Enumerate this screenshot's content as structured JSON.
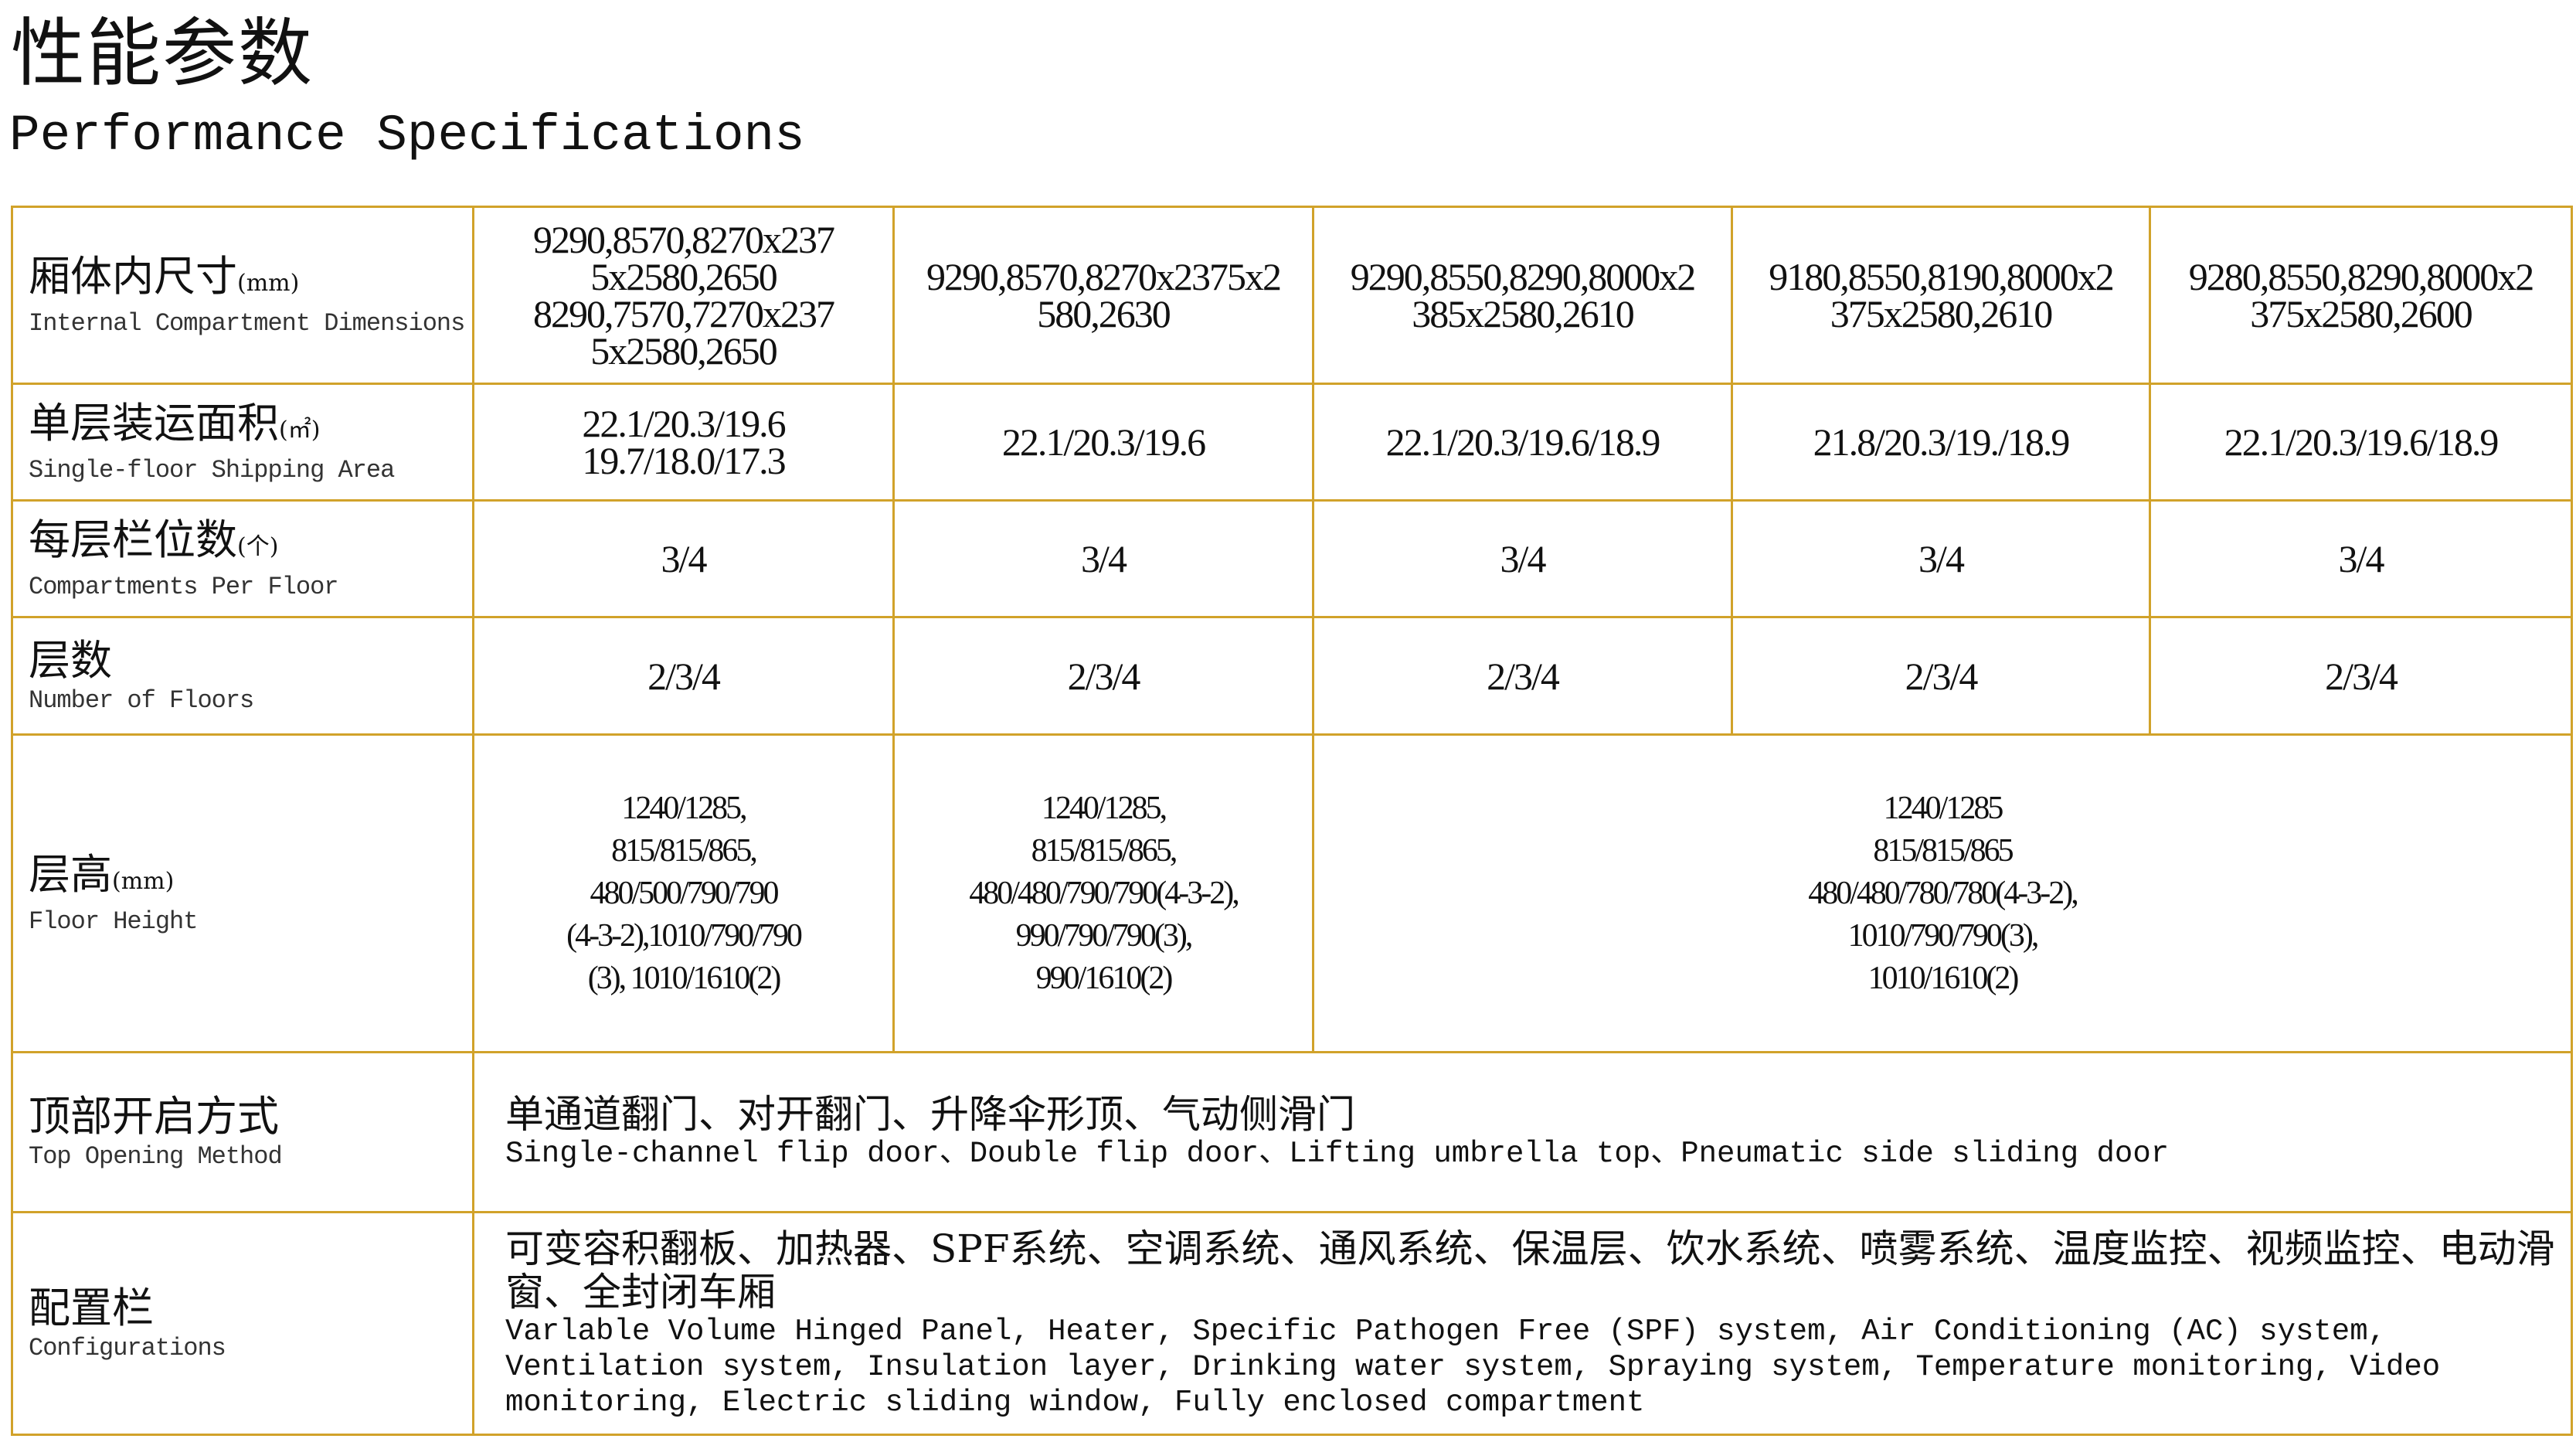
{
  "title_cn": "性能参数",
  "title_en": "Performance Specifications",
  "border_color": "#D1A22A",
  "rows": {
    "dimensions": {
      "label_cn": "厢体内尺寸",
      "unit": "(mm)",
      "label_en": "Internal Compartment Dimensions",
      "values": [
        "9290,8570,8270x237\n5x2580,2650\n8290,7570,7270x237\n5x2580,2650",
        "9290,8570,8270x2375x2\n580,2630",
        "9290,8550,8290,8000x2\n385x2580,2610",
        "9180,8550,8190,8000x2\n375x2580,2610",
        "9280,8550,8290,8000x2\n375x2580,2600"
      ]
    },
    "area": {
      "label_cn": "单层装运面积",
      "unit": "(㎡)",
      "label_en": "Single-floor Shipping Area",
      "values": [
        "22.1/20.3/19.6\n19.7/18.0/17.3",
        "22.1/20.3/19.6",
        "22.1/20.3/19.6/18.9",
        "21.8/20.3/19./18.9",
        "22.1/20.3/19.6/18.9"
      ]
    },
    "compartments": {
      "label_cn": "每层栏位数",
      "unit": "(个)",
      "label_en": "Compartments Per Floor",
      "values": [
        "3/4",
        "3/4",
        "3/4",
        "3/4",
        "3/4"
      ]
    },
    "floors": {
      "label_cn": "层数",
      "label_en": "Number of Floors",
      "values": [
        "2/3/4",
        "2/3/4",
        "2/3/4",
        "2/3/4",
        "2/3/4"
      ]
    },
    "floor_height": {
      "label_cn": "层高",
      "unit": "(mm)",
      "label_en": "Floor Height",
      "values": [
        "1240/1285,\n815/815/865,\n480/500/790/790\n(4-3-2),1010/790/790\n(3), 1010/1610(2)",
        "1240/1285,\n815/815/865,\n480/480/790/790(4-3-2),\n990/790/790(3),\n990/1610(2)",
        "1240/1285\n815/815/865\n480/480/780/780(4-3-2),\n1010/790/790(3),\n1010/1610(2)"
      ]
    },
    "top_opening": {
      "label_cn": "顶部开启方式",
      "label_en": "Top Opening Method",
      "value_cn": "单通道翻门、对开翻门、升降伞形顶、气动侧滑门",
      "value_en": "Single-channel flip door、Double flip door、Lifting umbrella top、Pneumatic side sliding door"
    },
    "configurations": {
      "label_cn": "配置栏",
      "label_en": "Configurations",
      "value_cn": "可变容积翻板、加热器、SPF系统、空调系统、通风系统、保温层、饮水系统、喷雾系统、温度监控、视频监控、电动滑窗、全封闭车厢",
      "value_en": "Varlable Volume Hinged Panel, Heater, Specific Pathogen Free (SPF) system, Air Conditioning (AC) system, Ventilation system, Insulation layer, Drinking water system, Spraying system, Temperature monitoring, Video monitoring, Electric sliding window, Fully enclosed compartment"
    }
  }
}
